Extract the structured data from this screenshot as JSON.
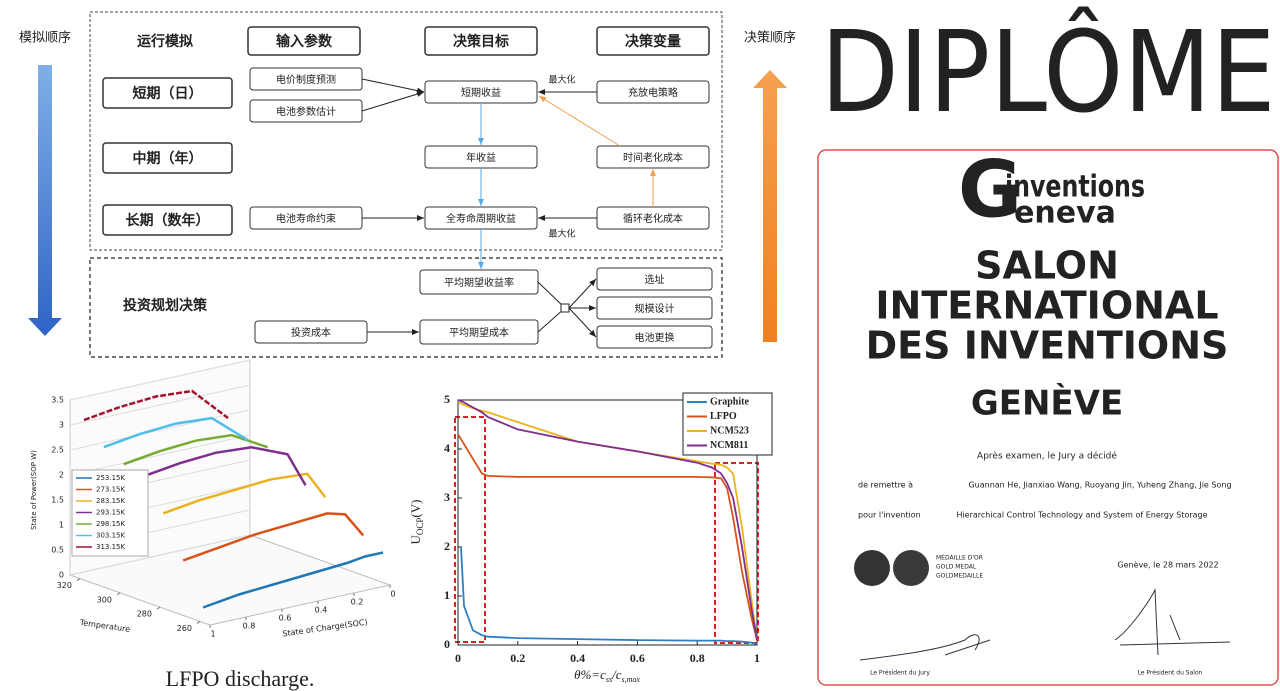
{
  "diagram": {
    "simulation_order": "模拟顺序",
    "decision_order": "决策顺序",
    "headers": [
      "运行模拟",
      "输入参数",
      "决策目标",
      "决策变量"
    ],
    "periods": [
      "短期（日）",
      "中期（年）",
      "长期（数年）"
    ],
    "inputs": [
      "电价制度预测",
      "电池参数估计",
      "电池寿命约束"
    ],
    "goals": [
      "短期收益",
      "年收益",
      "全寿命周期收益"
    ],
    "variables": [
      "充放电策略",
      "时间老化成本",
      "循环老化成本"
    ],
    "maximize": [
      "最大化",
      "最大化"
    ],
    "investment": {
      "title": "投资规划决策",
      "goals": [
        "平均期望收益率",
        "平均期望成本"
      ],
      "input": "投资成本",
      "variables": [
        "选址",
        "规模设计",
        "电池更换"
      ]
    }
  },
  "chart_data": [
    {
      "type": "line3d",
      "caption": "LFPO discharge.",
      "zlabel": "State of Power(SOP W)",
      "tlabel": "Temperature",
      "xlabel": "State of Charge(SOC)",
      "x": [
        1,
        0.8,
        0.6,
        0.4,
        0.2,
        0.1,
        0
      ],
      "xlim": [
        1,
        0
      ],
      "xticks": [
        1,
        0.8,
        0.6,
        0.4,
        0.2,
        0
      ],
      "tlim": [
        255,
        325
      ],
      "tticks": [
        320,
        300,
        280,
        260
      ],
      "zlim": [
        0,
        3.5
      ],
      "zticks": [
        0,
        0.5,
        1,
        1.5,
        2,
        2.5,
        3,
        3.5
      ],
      "grid": true,
      "series": [
        {
          "name": "253.15K",
          "color": "#1f77b4",
          "values": [
            0.3,
            0.4,
            0.45,
            0.5,
            0.55,
            0.6,
            0.6
          ]
        },
        {
          "name": "273.15K",
          "color": "#d95319",
          "values": [
            1.1,
            1.2,
            1.3,
            1.35,
            1.4,
            1.3,
            0.8
          ]
        },
        {
          "name": "283.15K",
          "color": "#edb120",
          "values": [
            1.9,
            2.0,
            2.05,
            2.1,
            2.05,
            1.5,
            null
          ]
        },
        {
          "name": "293.15K",
          "color": "#7e2f8e",
          "values": [
            2.5,
            2.6,
            2.65,
            2.6,
            2.3,
            1.6,
            null
          ]
        },
        {
          "name": "298.15K",
          "color": "#77ac30",
          "values": [
            2.6,
            2.7,
            2.75,
            2.7,
            2.3,
            null,
            null
          ]
        },
        {
          "name": "303.15K",
          "color": "#4dbeee",
          "values": [
            2.8,
            2.9,
            2.95,
            2.9,
            2.3,
            null,
            null
          ]
        },
        {
          "name": "313.15K",
          "color": "#a2142f",
          "values": [
            3.2,
            3.3,
            3.35,
            3.3,
            2.6,
            null,
            null
          ]
        }
      ]
    },
    {
      "type": "line",
      "ylabel": {
        "main": "U",
        "sub": "OCP",
        "tail": "(V)"
      },
      "xlabel": [
        "θ%=c",
        "ss",
        "/c",
        "s,max"
      ],
      "x": [
        0,
        0.01,
        0.02,
        0.05,
        0.08,
        0.1,
        0.2,
        0.4,
        0.6,
        0.8,
        0.85,
        0.88,
        0.9,
        0.92,
        0.95,
        0.98,
        1.0
      ],
      "xlim": [
        0,
        1
      ],
      "xticks": [
        0,
        0.2,
        0.4,
        0.6,
        0.8,
        1
      ],
      "ylim": [
        0,
        5
      ],
      "yticks": [
        0,
        1,
        2,
        3,
        4,
        5
      ],
      "legend": "upper right",
      "series": [
        {
          "name": "Graphite",
          "color": "#2e7fc4",
          "values": [
            null,
            2.0,
            0.8,
            0.3,
            0.2,
            0.17,
            0.14,
            0.12,
            0.1,
            0.09,
            0.09,
            0.09,
            0.08,
            0.08,
            0.07,
            0.05,
            0.02
          ]
        },
        {
          "name": "LFPO",
          "color": "#d95319",
          "values": [
            4.3,
            4.2,
            4.1,
            3.8,
            3.5,
            3.45,
            3.43,
            3.43,
            3.43,
            3.43,
            3.42,
            3.4,
            3.2,
            2.6,
            1.5,
            0.6,
            0.1
          ]
        },
        {
          "name": "NCM523",
          "color": "#edb120",
          "values": [
            4.95,
            4.93,
            4.9,
            4.83,
            4.78,
            4.75,
            4.55,
            4.15,
            3.95,
            3.75,
            3.7,
            3.68,
            3.62,
            3.5,
            2.4,
            1.0,
            0.1
          ]
        },
        {
          "name": "NCM811",
          "color": "#7e2f8e",
          "values": [
            5.0,
            4.98,
            4.95,
            4.85,
            4.75,
            4.65,
            4.4,
            4.15,
            3.95,
            3.72,
            3.62,
            3.5,
            3.3,
            3.0,
            2.0,
            0.8,
            0.1
          ]
        }
      ]
    }
  ],
  "diploma": {
    "title": "DIPLÔME",
    "logo": {
      "letter": "G",
      "line1": "inventions",
      "line2": "eneva"
    },
    "salon": [
      "SALON",
      "INTERNATIONAL",
      "DES INVENTIONS"
    ],
    "city": "GENÈVE",
    "decision": "Après examen, le Jury a décidé",
    "award_to_label": "de remettre à",
    "awardees": "Guannan He, Jianxiao Wang, Ruoyang Jin, Yuheng Zhang, Jie Song",
    "invention_label": "pour l'invention",
    "invention": "Hierarchical Control Technology and System of Energy Storage",
    "medal": [
      "MÉDAILLE D'OR",
      "GOLD MEDAL",
      "GOLDMEDAILLE"
    ],
    "date": "Genève, le 28 mars 2022",
    "signatures": [
      "Le Président du Jury",
      "Le Président du Salon"
    ]
  }
}
